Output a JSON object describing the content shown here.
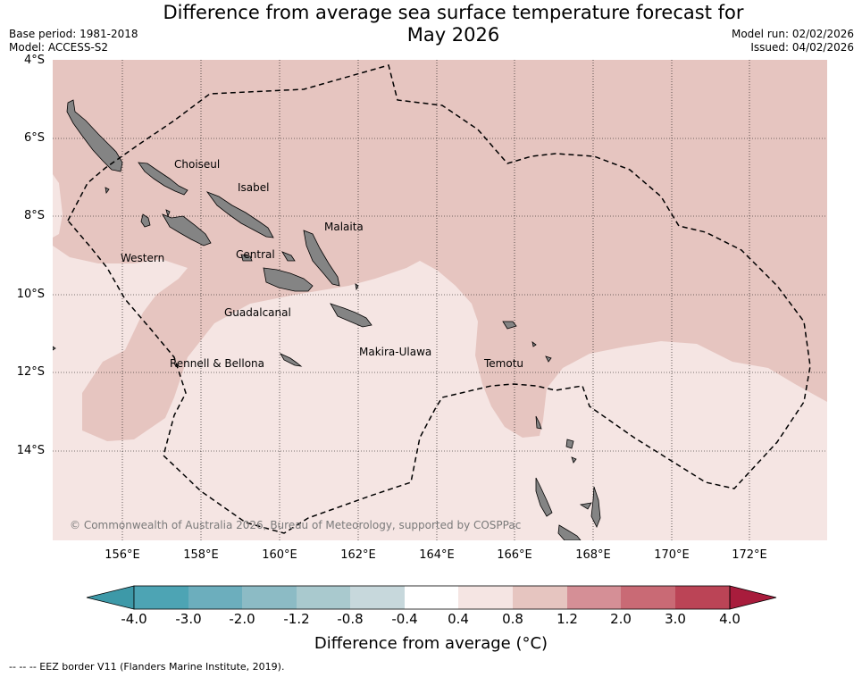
{
  "title_line1": "Difference from average sea surface temperature forecast for",
  "title_line2": "May 2026",
  "base_period": "Base period: 1981-2018",
  "model": "Model: ACCESS-S2",
  "model_run": "Model run: 02/02/2026",
  "issued": "Issued: 04/02/2026",
  "lat_labels": [
    "4°S",
    "6°S",
    "8°S",
    "10°S",
    "12°S",
    "14°S"
  ],
  "lon_labels": [
    "156°E",
    "158°E",
    "160°E",
    "162°E",
    "164°E",
    "166°E",
    "168°E",
    "170°E",
    "172°E"
  ],
  "places": {
    "choiseul": "Choiseul",
    "isabel": "Isabel",
    "malaita": "Malaita",
    "western": "Western",
    "central": "Central",
    "guadalcanal": "Guadalcanal",
    "makira": "Makira-Ulawa",
    "rennell": "Rennell & Bellona",
    "temotu": "Temotu"
  },
  "credit": "© Commonwealth of Australia 2026, Bureau of Meteorology, supported by COSPPac",
  "colorbar": {
    "labels": [
      "-4.0",
      "-3.0",
      "-2.0",
      "-1.2",
      "-0.8",
      "-0.4",
      "0.4",
      "0.8",
      "1.2",
      "2.0",
      "3.0",
      "4.0"
    ],
    "colors": [
      "#3d99a8",
      "#4da4b4",
      "#6caebd",
      "#8cbbc5",
      "#a9c9ce",
      "#c7d8dc",
      "#ffffff",
      "#f5e5e3",
      "#e6c5c0",
      "#d58f96",
      "#c96a75",
      "#bb4456",
      "#a81c3c"
    ],
    "title": "Difference from average (°C)"
  },
  "footnote": "--  --  -- EEZ border V11 (Flanders Marine Institute, 2019).",
  "legend_colors": {
    "anomaly_04_08": "#f5e5e3",
    "anomaly_08_12": "#e6c5c0",
    "land": "#848484"
  }
}
